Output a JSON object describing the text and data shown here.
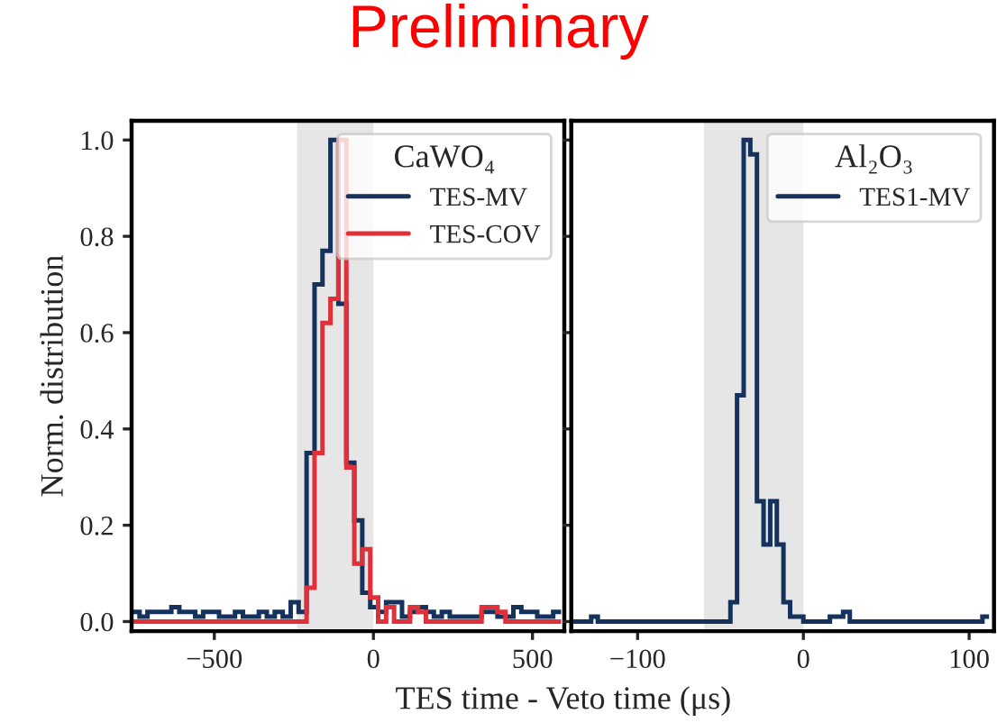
{
  "chart_data": [
    {
      "type": "histogram",
      "title": "Preliminary",
      "xlabel": "TES time - Veto time (μs)",
      "ylabel": "Norm. distribution",
      "legend_title": "CaWO₄",
      "bins": [
        -760,
        -735,
        -710,
        -685,
        -660,
        -635,
        -610,
        -585,
        -560,
        -535,
        -510,
        -485,
        -460,
        -435,
        -410,
        -385,
        -360,
        -335,
        -310,
        -285,
        -260,
        -235,
        -210,
        -185,
        -160,
        -135,
        -110,
        -85,
        -60,
        -35,
        -10,
        15,
        40,
        65,
        90,
        115,
        140,
        165,
        190,
        215,
        240,
        265,
        290,
        315,
        340,
        365,
        390,
        415,
        440,
        465,
        490,
        515,
        540,
        565,
        590
      ],
      "series": [
        {
          "name": "TES-MV",
          "color": "#14325c",
          "values": [
            0.02,
            0.01,
            0.02,
            0.02,
            0.02,
            0.03,
            0.02,
            0.02,
            0.01,
            0.02,
            0.02,
            0.01,
            0.01,
            0.02,
            0.01,
            0.01,
            0.02,
            0.01,
            0.02,
            0.01,
            0.04,
            0.02,
            0.35,
            0.7,
            0.77,
            1.0,
            0.66,
            0.33,
            0.21,
            0.06,
            0.03,
            0.02,
            0.04,
            0.04,
            0.01,
            0.02,
            0.03,
            0.02,
            0.01,
            0.02,
            0.01,
            0.01,
            0.01,
            0.01,
            0.02,
            0.02,
            0.01,
            0.01,
            0.03,
            0.02,
            0.02,
            0.01,
            0.01,
            0.02
          ]
        },
        {
          "name": "TES-COV",
          "color": "#e0303a",
          "values": [
            0,
            0,
            0,
            0,
            0,
            0,
            0,
            0,
            0,
            0,
            0,
            0,
            0,
            0,
            0,
            0,
            0,
            0,
            0,
            0,
            0,
            0,
            0.07,
            0.35,
            0.62,
            0.67,
            1.0,
            0.32,
            0.12,
            0.15,
            0.05,
            0,
            0.03,
            0,
            0,
            0.03,
            0.02,
            0,
            0,
            0,
            0,
            0,
            0,
            0,
            0.03,
            0.03,
            0.02,
            0,
            0,
            0,
            0,
            0,
            0,
            0
          ]
        }
      ],
      "xlim": [
        -760,
        600
      ],
      "ylim": [
        -0.02,
        1.04
      ],
      "xticks": [
        {
          "value": -500,
          "label": "−500"
        },
        0,
        500
      ],
      "yticks": [
        {
          "value": 0,
          "label": "0.0"
        },
        0.2,
        0.4,
        0.6,
        0.8,
        {
          "value": 1,
          "label": "1.0"
        }
      ],
      "bands": [
        {
          "axis": "x",
          "from": -240,
          "to": 0,
          "color": "#e6e6e6"
        }
      ],
      "legend": "top right",
      "grid": false
    },
    {
      "type": "histogram",
      "legend_title": "Al₂O₃",
      "bins": [
        -140,
        -136,
        -132,
        -128,
        -124,
        -120,
        -116,
        -112,
        -108,
        -104,
        -100,
        -96,
        -92,
        -88,
        -84,
        -80,
        -76,
        -72,
        -68,
        -64,
        -60,
        -56,
        -52,
        -48,
        -44,
        -40,
        -36,
        -32,
        -28,
        -24,
        -20,
        -16,
        -12,
        -8,
        -4,
        0,
        4,
        8,
        12,
        16,
        20,
        24,
        28,
        32,
        36,
        40,
        44,
        48,
        52,
        56,
        60,
        64,
        68,
        72,
        76,
        80,
        84,
        88,
        92,
        96,
        100,
        104,
        108,
        112
      ],
      "series": [
        {
          "name": "TES1-MV",
          "color": "#14325c",
          "values": [
            0,
            0,
            0,
            0.01,
            0,
            0,
            0,
            0,
            0,
            0,
            0,
            0,
            0,
            0,
            0,
            0,
            0,
            0,
            0,
            0,
            0,
            0,
            0,
            0,
            0.04,
            0.47,
            1.0,
            0.97,
            0.25,
            0.16,
            0.25,
            0.16,
            0.04,
            0.01,
            0.01,
            0,
            0,
            0,
            0,
            0.01,
            0.01,
            0.02,
            0,
            0,
            0,
            0,
            0,
            0,
            0,
            0,
            0,
            0,
            0,
            0,
            0,
            0,
            0,
            0,
            0,
            0,
            0,
            0,
            0.01
          ]
        }
      ],
      "xlim": [
        -140,
        115
      ],
      "ylim": [
        -0.02,
        1.04
      ],
      "xticks": [
        {
          "value": -100,
          "label": "−100"
        },
        0,
        100
      ],
      "yticks": [
        0,
        0.2,
        0.4,
        0.6,
        0.8,
        1
      ],
      "tick_labels": "x",
      "bands": [
        {
          "axis": "x",
          "from": -60,
          "to": 0,
          "color": "#e6e6e6"
        }
      ],
      "legend": "top right",
      "grid": false
    }
  ]
}
